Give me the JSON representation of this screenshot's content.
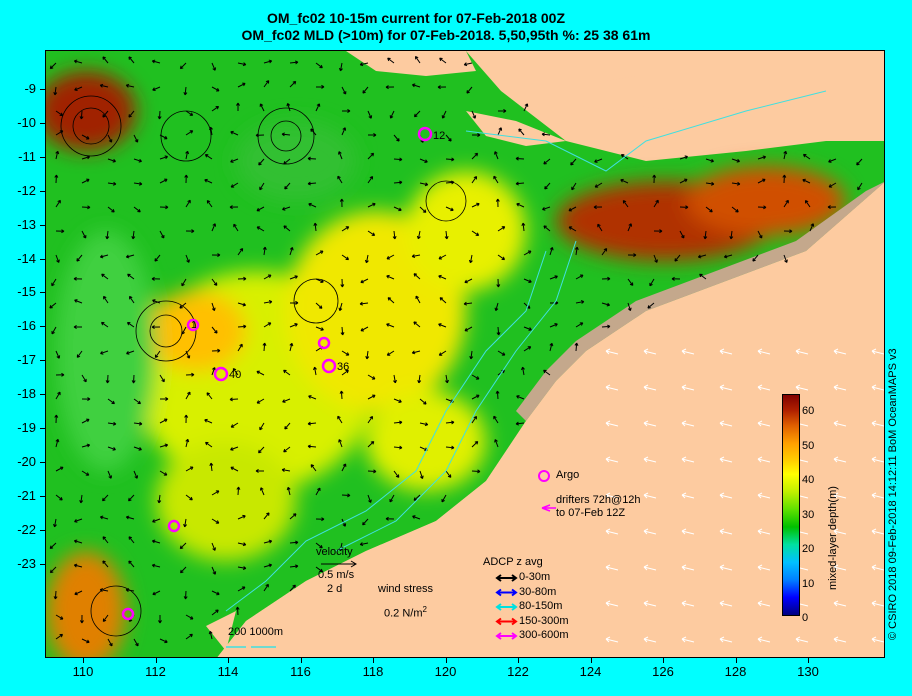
{
  "title_line1": "OM_fc02 10-15m current for 07-Feb-2018 00Z",
  "title_line2": "OM_fc02 MLD (>10m) for 07-Feb-2018. 5,50,95th %: 25  38  61m",
  "y_labels": [
    "-9",
    "-10",
    "-11",
    "-12",
    "-13",
    "-14",
    "-15",
    "-16",
    "-17",
    "-18",
    "-19",
    "-20",
    "-21",
    "-22",
    "-23"
  ],
  "x_labels": [
    "110",
    "112",
    "114",
    "116",
    "118",
    "120",
    "122",
    "124",
    "126",
    "128",
    "130"
  ],
  "colorbar": {
    "title": "mixed-layer depth(m)",
    "labels": [
      "60",
      "50",
      "40",
      "30",
      "20",
      "10",
      "0"
    ]
  },
  "legend": {
    "velocity_label": "velocity",
    "velocity_scale": "0.5 m/s",
    "velocity_time": "2 d",
    "wind_label": "wind stress",
    "wind_scale": "0.2 N/m",
    "wind_sup": "2",
    "argo_label": "Argo",
    "drifters_line1": "drifters 72h@12h",
    "drifters_line2": "to 07-Feb 12Z",
    "adcp_title": "ADCP z avg",
    "adcp_items": [
      {
        "label": "0-30m",
        "color": "#000000"
      },
      {
        "label": "30-80m",
        "color": "#0000ff"
      },
      {
        "label": "80-150m",
        "color": "#00e0e0"
      },
      {
        "label": "150-300m",
        "color": "#ff0000"
      },
      {
        "label": "300-600m",
        "color": "#ff00ff"
      }
    ],
    "isobath_label": "200  1000m"
  },
  "argo_ids": [
    "12",
    "1",
    "40",
    "36"
  ],
  "credit": "© CSIRO 2018  09-Feb-2018 14:12:11 BoM OceanMAPS v3"
}
